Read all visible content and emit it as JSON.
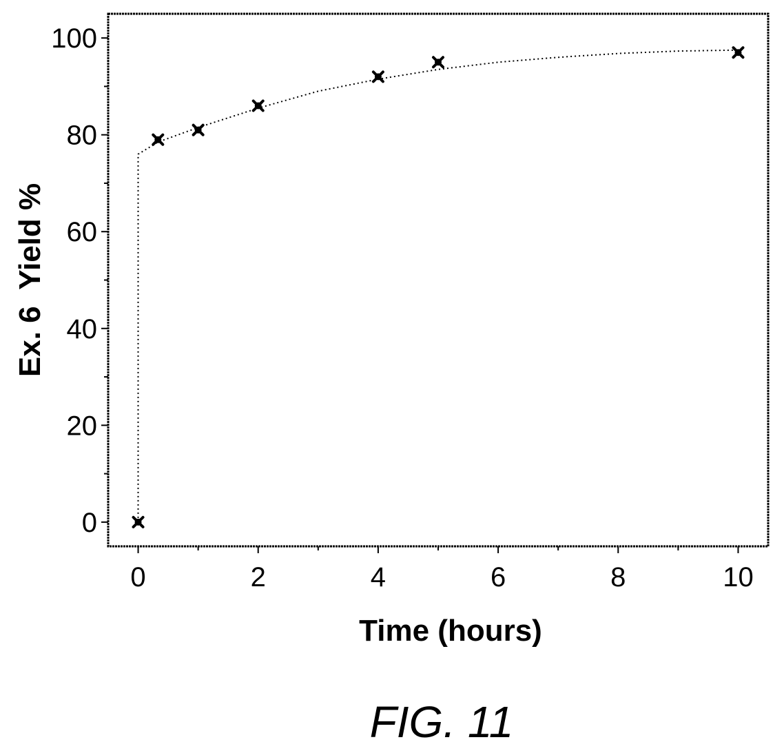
{
  "chart_data": {
    "type": "line",
    "title": "",
    "xlabel": "Time (hours)",
    "ylabel": "Ex. 6  Yield %",
    "xlim": [
      -0.5,
      10.5
    ],
    "ylim": [
      -5,
      105
    ],
    "xticks": [
      0,
      2,
      4,
      6,
      8,
      10
    ],
    "yticks": [
      0,
      20,
      40,
      60,
      80,
      100
    ],
    "xtick_labels": [
      "0",
      "2",
      "4",
      "6",
      "8",
      "10"
    ],
    "ytick_labels": [
      "0",
      "20",
      "40",
      "60",
      "80",
      "100"
    ],
    "grid": false,
    "series": [
      {
        "marker": "x-filled",
        "x": [
          0,
          0.33,
          1,
          2,
          4,
          5,
          10
        ],
        "y": [
          0,
          79,
          81,
          86,
          92,
          95,
          97
        ]
      }
    ],
    "fit_curve": {
      "style": "dotted",
      "x": [
        0,
        0,
        0.33,
        1,
        2,
        3,
        4,
        5,
        6,
        7,
        8,
        9,
        10
      ],
      "y": [
        0,
        76,
        78.5,
        81.5,
        85.5,
        89,
        91.5,
        93.5,
        95,
        96,
        96.8,
        97.3,
        97.5
      ]
    }
  },
  "figure_label": "FIG. 11",
  "colors": {
    "ink": "#000000",
    "background": "#ffffff"
  }
}
